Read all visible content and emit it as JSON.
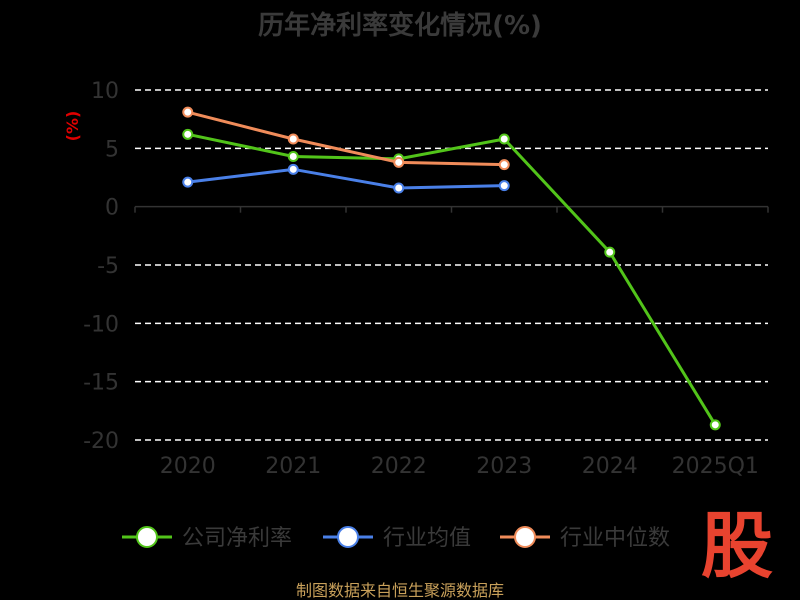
{
  "chart_data": {
    "type": "line",
    "title": "历年净利率变化情况(%)",
    "ylabel": "(%)",
    "ylim": [
      -20,
      10
    ],
    "yticks": [
      10,
      5,
      0,
      -5,
      -10,
      -15,
      -20
    ],
    "categories": [
      "2020",
      "2021",
      "2022",
      "2023",
      "2024",
      "2025Q1"
    ],
    "grid": true,
    "legend_position": "bottom",
    "series": [
      {
        "name": "公司净利率",
        "color": "#52c41a",
        "values": [
          6.2,
          4.3,
          4.1,
          5.8,
          -3.9,
          -18.7
        ]
      },
      {
        "name": "行业均值",
        "color": "#4a80e8",
        "values": [
          2.1,
          3.2,
          1.6,
          1.8,
          null,
          null
        ]
      },
      {
        "name": "行业中位数",
        "color": "#f08c5a",
        "values": [
          8.1,
          5.8,
          3.8,
          3.6,
          null,
          null
        ]
      }
    ]
  },
  "source": "制图数据来自恒生聚源数据库",
  "watermark": "股"
}
